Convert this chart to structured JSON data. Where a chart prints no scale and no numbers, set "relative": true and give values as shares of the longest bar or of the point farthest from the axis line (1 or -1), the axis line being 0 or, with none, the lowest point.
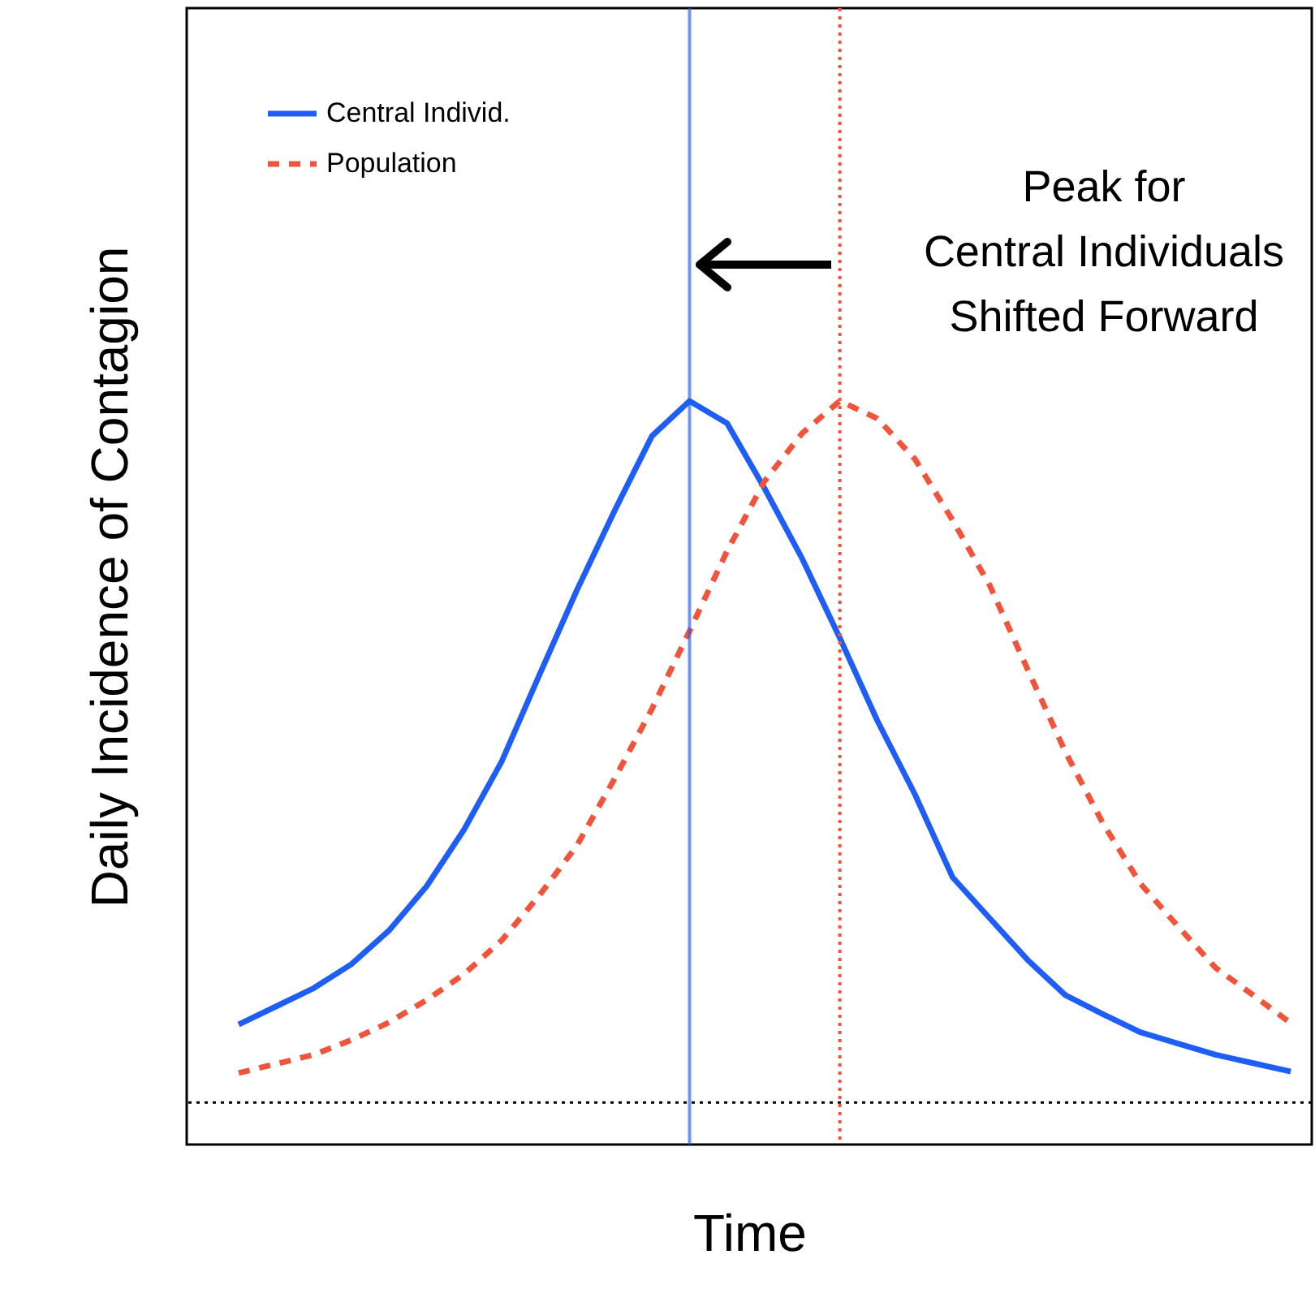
{
  "chart_data": {
    "type": "line",
    "relative": true,
    "xlabel": "Time",
    "ylabel": "Daily Incidence of Contagion",
    "legend": "top left",
    "annotations": [
      "Peak for\nCentral Individuals\nShifted Forward"
    ],
    "categories": [
      null,
      null,
      null,
      null,
      null,
      null,
      null,
      null,
      null,
      null,
      null,
      null,
      null,
      null,
      null,
      null,
      null,
      null,
      null,
      null,
      null,
      null,
      null,
      null,
      null,
      null,
      null,
      null,
      null
    ],
    "series": [
      {
        "name": "Central Individ.",
        "color": "#1f5ef5",
        "line_style": "solid",
        "values": [
          0.111,
          0.137,
          0.163,
          0.197,
          0.245,
          0.308,
          0.389,
          0.486,
          0.609,
          0.73,
          0.843,
          0.95,
          1.0,
          0.968,
          0.875,
          0.775,
          0.662,
          0.544,
          0.439,
          0.321,
          0.262,
          0.203,
          0.153,
          0.126,
          0.1,
          0.084,
          0.068,
          0.056,
          0.044
        ]
      },
      {
        "name": "Population",
        "color": "#f0553c",
        "line_style": "dashed",
        "values": [
          0.042,
          0.055,
          0.068,
          0.089,
          0.114,
          0.146,
          0.183,
          0.231,
          0.295,
          0.366,
          0.461,
          0.561,
          0.672,
          0.786,
          0.886,
          0.954,
          1.0,
          0.975,
          0.917,
          0.83,
          0.736,
          0.617,
          0.5,
          0.398,
          0.312,
          0.251,
          0.192,
          0.153,
          0.113
        ]
      }
    ]
  }
}
